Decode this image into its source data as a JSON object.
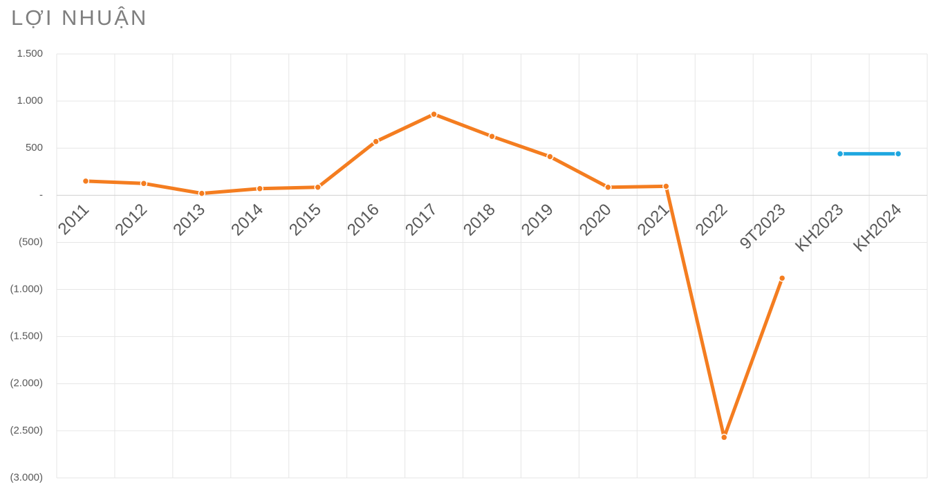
{
  "chart_data": {
    "type": "line",
    "title": "LỢI NHUẬN",
    "categories": [
      "2011",
      "2012",
      "2013",
      "2014",
      "2015",
      "2016",
      "2017",
      "2018",
      "2019",
      "2020",
      "2021",
      "2022",
      "9T2023",
      "KH2023",
      "KH2024"
    ],
    "series": [
      {
        "color": "#f47d20",
        "values": [
          150,
          125,
          20,
          70,
          85,
          570,
          860,
          625,
          410,
          85,
          95,
          -2570,
          -880,
          null,
          null
        ]
      },
      {
        "color": "#1fa7e0",
        "values": [
          null,
          null,
          null,
          null,
          null,
          null,
          null,
          null,
          null,
          null,
          null,
          null,
          null,
          440,
          440
        ]
      }
    ],
    "ylim": [
      -3000,
      1500
    ],
    "yticks": [
      {
        "value": -3000,
        "label": "(3.000)"
      },
      {
        "value": -2500,
        "label": "(2.500)"
      },
      {
        "value": -2000,
        "label": "(2.000)"
      },
      {
        "value": -1500,
        "label": "(1.500)"
      },
      {
        "value": -1000,
        "label": "(1.000)"
      },
      {
        "value": -500,
        "label": "(500)"
      },
      {
        "value": 0,
        "label": "-"
      },
      500,
      {
        "value": 1000,
        "label": "1.000"
      },
      {
        "value": 1500,
        "label": "1.500"
      }
    ],
    "grid": true
  }
}
